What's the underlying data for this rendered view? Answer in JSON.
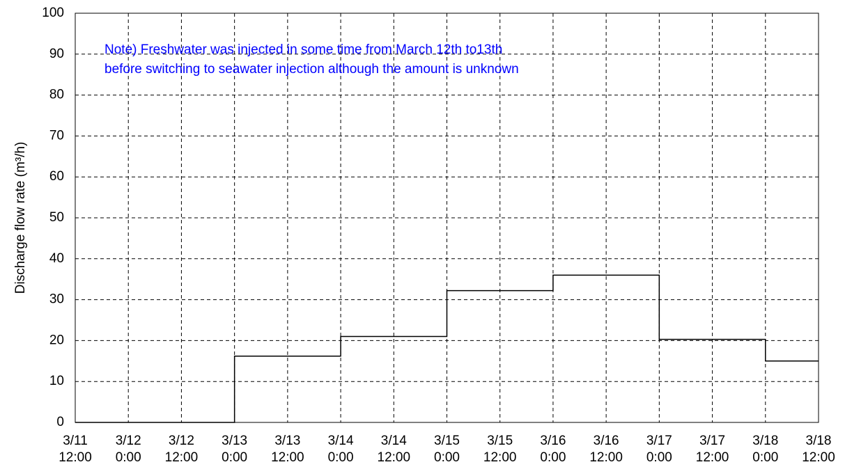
{
  "chart_data": {
    "type": "step",
    "y_label": "Discharge flow rate (m³/h)",
    "annotations": [
      "Note) Freshwater was injected in some time from March 12th to13th",
      "before switching to seawater injection although the amount is unknown"
    ],
    "annotation_color": "#0000ff",
    "categories": [
      "3/11\n12:00",
      "3/12\n0:00",
      "3/12\n12:00",
      "3/13\n0:00",
      "3/13\n12:00",
      "3/14\n0:00",
      "3/14\n12:00",
      "3/15\n0:00",
      "3/15\n12:00",
      "3/16\n0:00",
      "3/16\n12:00",
      "3/17\n0:00",
      "3/17\n12:00",
      "3/18\n0:00",
      "3/18\n12:00"
    ],
    "values": [
      0,
      0,
      0,
      16.2,
      16.2,
      21,
      21,
      32.2,
      32.2,
      36,
      36,
      20.3,
      20.3,
      15,
      15
    ],
    "color": "#000000",
    "ylim": [
      0,
      100
    ],
    "yticks": [
      0,
      10,
      20,
      30,
      40,
      50,
      60,
      70,
      80,
      90,
      100
    ],
    "grid": true
  }
}
